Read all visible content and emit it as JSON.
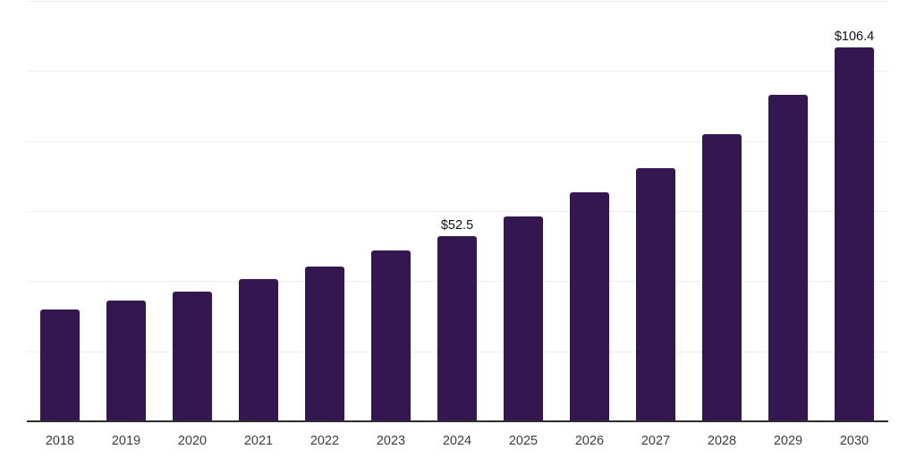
{
  "chart_data": {
    "type": "bar",
    "title": "",
    "xlabel": "",
    "ylabel": "",
    "categories": [
      "2018",
      "2019",
      "2020",
      "2021",
      "2022",
      "2023",
      "2024",
      "2025",
      "2026",
      "2027",
      "2028",
      "2029",
      "2030"
    ],
    "values": [
      31.7,
      34.1,
      36.7,
      40.3,
      43.8,
      48.4,
      52.5,
      58.2,
      65.2,
      72.1,
      81.7,
      93.0,
      106.4
    ],
    "data_labels": [
      "",
      "",
      "",
      "",
      "",
      "",
      "$52.5",
      "",
      "",
      "",
      "",
      "",
      "$106.4"
    ],
    "ylim": [
      0,
      120
    ],
    "grid_step": 20,
    "grid": "horizontal-only",
    "legend_position": "none",
    "y_axis_labels_visible": false,
    "colors": {
      "bar": "#341651",
      "gridline": "#ededed",
      "axis_line": "#2e2e2e",
      "tick_label": "#3d3d3d",
      "value_label": "#111111",
      "background": "#ffffff"
    }
  }
}
